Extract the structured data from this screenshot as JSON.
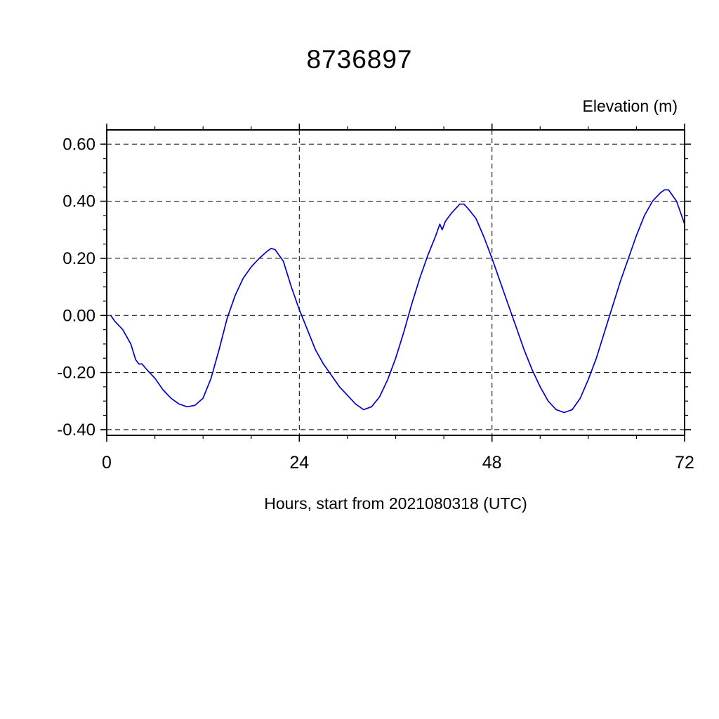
{
  "chart": {
    "title": "8736897",
    "ylabel": "Elevation (m)",
    "xlabel": "Hours, start from 2021080318 (UTC)"
  },
  "chart_data": {
    "type": "line",
    "title": "8736897",
    "xlabel": "Hours, start from 2021080318 (UTC)",
    "ylabel": "Elevation (m)",
    "xlim": [
      0,
      72
    ],
    "ylim": [
      -0.42,
      0.65
    ],
    "xticks": [
      {
        "v": 0,
        "label": "0"
      },
      {
        "v": 24,
        "label": "24"
      },
      {
        "v": 48,
        "label": "48"
      },
      {
        "v": 72,
        "label": "72"
      }
    ],
    "yticks": [
      {
        "v": -0.4,
        "label": "-0.40"
      },
      {
        "v": -0.2,
        "label": "-0.20"
      },
      {
        "v": 0.0,
        "label": "0.00"
      },
      {
        "v": 0.2,
        "label": "0.20"
      },
      {
        "v": 0.4,
        "label": "0.40"
      },
      {
        "v": 0.6,
        "label": "0.60"
      }
    ],
    "x_minor_step": 6,
    "y_minor_step": 0.05,
    "grid_x": [
      24,
      48
    ],
    "grid": true,
    "legend": "none",
    "line_color": "#0000cc",
    "series": [
      {
        "name": "elevation",
        "x": [
          0.5,
          1,
          2,
          3,
          3.6,
          4,
          4.4,
          5,
          6,
          7,
          8,
          9,
          10,
          11,
          12,
          13,
          14,
          15,
          16,
          17,
          18,
          19,
          20,
          20.5,
          21,
          22,
          23,
          24,
          25,
          26,
          27,
          28,
          29,
          30,
          31,
          32,
          33,
          34,
          35,
          36,
          37,
          38,
          39,
          40,
          41,
          41.5,
          41.8,
          42.2,
          43,
          44,
          44.5,
          45,
          46,
          47,
          48,
          49,
          50,
          51,
          52,
          53,
          54,
          55,
          56,
          57,
          58,
          59,
          60,
          61,
          62,
          63,
          64,
          65,
          66,
          67,
          68,
          69,
          69.5,
          70,
          71,
          72
        ],
        "y": [
          0.0,
          -0.02,
          -0.05,
          -0.1,
          -0.155,
          -0.17,
          -0.17,
          -0.19,
          -0.22,
          -0.26,
          -0.29,
          -0.31,
          -0.32,
          -0.315,
          -0.29,
          -0.22,
          -0.12,
          -0.01,
          0.07,
          0.13,
          0.17,
          0.2,
          0.225,
          0.235,
          0.23,
          0.19,
          0.1,
          0.02,
          -0.05,
          -0.12,
          -0.17,
          -0.21,
          -0.25,
          -0.28,
          -0.31,
          -0.33,
          -0.32,
          -0.285,
          -0.225,
          -0.15,
          -0.06,
          0.04,
          0.13,
          0.21,
          0.28,
          0.32,
          0.3,
          0.33,
          0.36,
          0.39,
          0.39,
          0.375,
          0.34,
          0.275,
          0.2,
          0.12,
          0.04,
          -0.04,
          -0.12,
          -0.19,
          -0.25,
          -0.3,
          -0.33,
          -0.34,
          -0.33,
          -0.29,
          -0.225,
          -0.15,
          -0.06,
          0.03,
          0.12,
          0.2,
          0.28,
          0.35,
          0.4,
          0.43,
          0.44,
          0.44,
          0.4,
          0.32
        ]
      }
    ]
  }
}
